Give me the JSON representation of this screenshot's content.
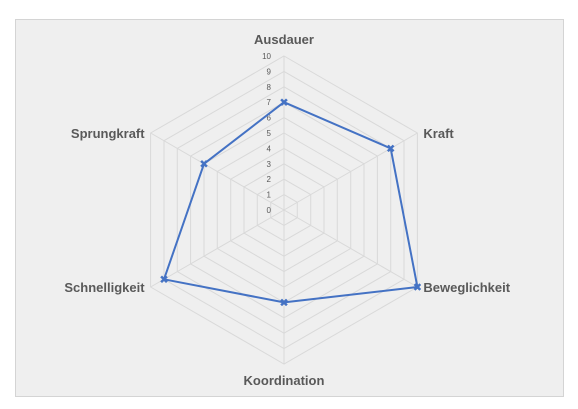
{
  "chart_data": {
    "type": "radar",
    "axes": [
      "Ausdauer",
      "Kraft",
      "Beweglichkeit",
      "Koordination",
      "Schnelligkeit",
      "Sprungkraft"
    ],
    "series": [
      {
        "values": [
          7,
          8,
          10,
          6,
          9,
          6
        ],
        "color": "#4472c4"
      }
    ],
    "rlim": [
      0,
      10
    ],
    "ticks": [
      "0",
      "1",
      "2",
      "3",
      "4",
      "5",
      "6",
      "7",
      "8",
      "9",
      "10"
    ],
    "grid": true,
    "grid_color": "#d9d9d9"
  }
}
